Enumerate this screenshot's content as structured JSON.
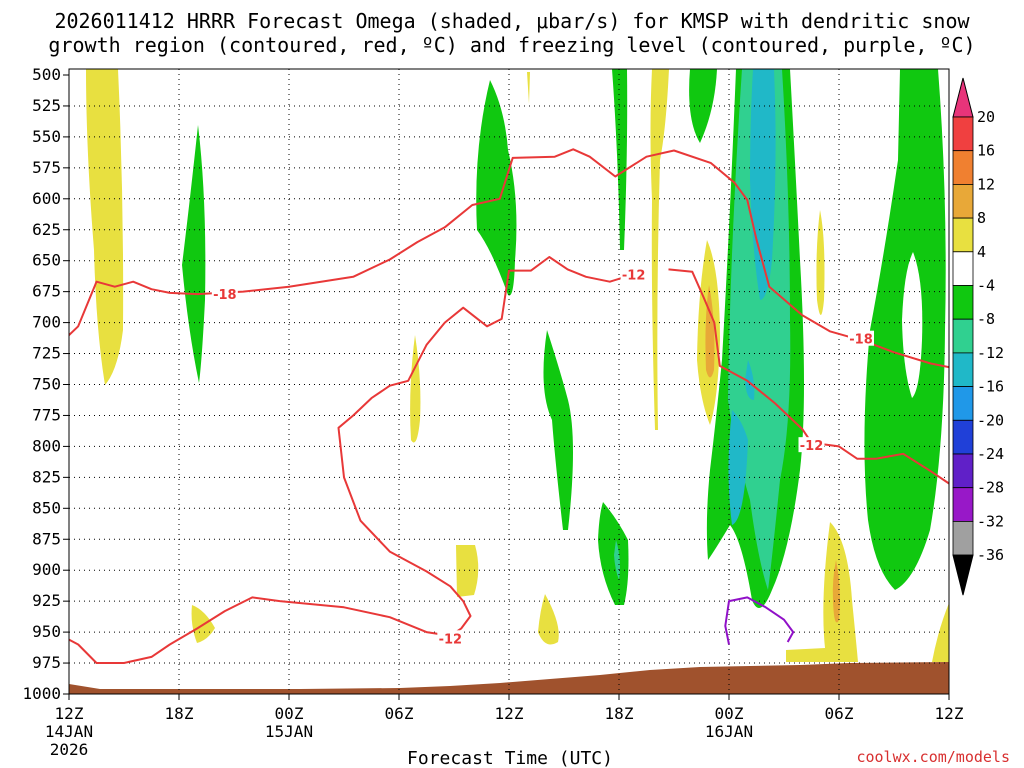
{
  "chart_data": {
    "type": "heatmap",
    "title_line1": "2026011412 HRRR Forecast Omega (shaded, μbar/s) for KMSP with dendritic snow",
    "title_line2": "growth region (contoured, red, ºC) and freezing level (contoured, purple, ºC)",
    "xlabel": "Forecast Time (UTC)",
    "credit": "coolwx.com/models",
    "x_range_hours": [
      0,
      48
    ],
    "x_ticks": [
      {
        "h": 0,
        "label": "12Z",
        "sub1": "14JAN",
        "sub2": "2026"
      },
      {
        "h": 6,
        "label": "18Z",
        "sub1": "",
        "sub2": ""
      },
      {
        "h": 12,
        "label": "00Z",
        "sub1": "15JAN",
        "sub2": ""
      },
      {
        "h": 18,
        "label": "06Z",
        "sub1": "",
        "sub2": ""
      },
      {
        "h": 24,
        "label": "12Z",
        "sub1": "",
        "sub2": ""
      },
      {
        "h": 30,
        "label": "18Z",
        "sub1": "",
        "sub2": ""
      },
      {
        "h": 36,
        "label": "00Z",
        "sub1": "16JAN",
        "sub2": ""
      },
      {
        "h": 42,
        "label": "06Z",
        "sub1": "",
        "sub2": ""
      },
      {
        "h": 48,
        "label": "12Z",
        "sub1": "",
        "sub2": ""
      }
    ],
    "y_range_hpa": [
      500,
      1000
    ],
    "y_ticks": [
      "500",
      "525",
      "550",
      "575",
      "600",
      "625",
      "650",
      "675",
      "700",
      "725",
      "750",
      "775",
      "800",
      "825",
      "850",
      "875",
      "900",
      "925",
      "950",
      "975",
      "1000"
    ],
    "colorbar": {
      "labels": [
        "20",
        "16",
        "12",
        "8",
        "4",
        "-4",
        "-8",
        "-12",
        "-16",
        "-20",
        "-24",
        "-28",
        "-32",
        "-36"
      ],
      "colors": [
        "#e8347a",
        "#f04040",
        "#f08030",
        "#e8a838",
        "#e8e040",
        "#ffffff",
        "#10c810",
        "#30d090",
        "#20b8c8",
        "#2098e8",
        "#2040d8",
        "#6020c8",
        "#9818c8",
        "#a0a0a0",
        "#000000"
      ]
    },
    "contour_labels": [
      {
        "text": "-18",
        "h": 8.5,
        "p": 677
      },
      {
        "text": "-12",
        "h": 30.8,
        "p": 661
      },
      {
        "text": "-18",
        "h": 43.2,
        "p": 713
      },
      {
        "text": "-12",
        "h": 40.5,
        "p": 799
      },
      {
        "text": "-12",
        "h": 20.8,
        "p": 955
      }
    ],
    "series": [
      {
        "name": "dendritic growth region -18 C (upper)",
        "points": [
          [
            -1.3,
            713
          ],
          [
            -0.2,
            713
          ],
          [
            0.5,
            703
          ],
          [
            1.5,
            667
          ],
          [
            2.5,
            671
          ],
          [
            3.5,
            667
          ],
          [
            4.5,
            673
          ],
          [
            5.5,
            676
          ],
          [
            7.0,
            677
          ],
          [
            9.5,
            675
          ],
          [
            12,
            671
          ],
          [
            15.5,
            663
          ],
          [
            17.5,
            649
          ],
          [
            19.0,
            635
          ],
          [
            20.5,
            623
          ],
          [
            22.0,
            605
          ],
          [
            23.5,
            600
          ],
          [
            24.2,
            567
          ],
          [
            26.5,
            566
          ],
          [
            27.5,
            560
          ],
          [
            28.4,
            566
          ],
          [
            29.8,
            582
          ],
          [
            31.5,
            566
          ],
          [
            33.0,
            561
          ],
          [
            35.0,
            571
          ],
          [
            36.3,
            587
          ],
          [
            37.0,
            601
          ],
          [
            37.5,
            633
          ],
          [
            38.2,
            671
          ],
          [
            40.0,
            694
          ],
          [
            41.5,
            707
          ],
          [
            43.4,
            715
          ],
          [
            45.0,
            724
          ],
          [
            47.0,
            733
          ],
          [
            48.0,
            736
          ]
        ]
      },
      {
        "name": "dendritic growth region -12 C (inner)",
        "points": [
          [
            30.8,
            661
          ],
          [
            29.5,
            667
          ],
          [
            28.2,
            663
          ],
          [
            27.2,
            657
          ],
          [
            26.2,
            647
          ],
          [
            25.2,
            658
          ],
          [
            24.0,
            658
          ],
          [
            23.6,
            697
          ],
          [
            22.8,
            703
          ],
          [
            21.5,
            688
          ],
          [
            20.5,
            700
          ],
          [
            19.5,
            718
          ],
          [
            18.5,
            747
          ],
          [
            17.5,
            751
          ],
          [
            16.5,
            761
          ],
          [
            15.5,
            775
          ],
          [
            14.7,
            785
          ],
          [
            15.0,
            825
          ],
          [
            15.9,
            860
          ],
          [
            17.5,
            885
          ],
          [
            19.5,
            901
          ],
          [
            20.8,
            913
          ],
          [
            21.5,
            925
          ],
          [
            21.9,
            937
          ],
          [
            21.4,
            947
          ],
          [
            20.8,
            953
          ],
          [
            19.5,
            950
          ],
          [
            17.5,
            938
          ],
          [
            15.0,
            930
          ],
          [
            11.5,
            925
          ],
          [
            10.0,
            922
          ],
          [
            8.5,
            933
          ],
          [
            7.0,
            947
          ],
          [
            5.5,
            960
          ],
          [
            4.5,
            970
          ],
          [
            3.0,
            975
          ],
          [
            1.5,
            975
          ],
          [
            0.5,
            960
          ],
          [
            -1.3,
            946
          ]
        ]
      },
      {
        "name": "dendritic growth region -12 C (right)",
        "points": [
          [
            32.7,
            657
          ],
          [
            34.0,
            659
          ],
          [
            34.6,
            679
          ],
          [
            35.2,
            700
          ],
          [
            35.5,
            735
          ],
          [
            37.0,
            747
          ],
          [
            38.5,
            765
          ],
          [
            40.0,
            786
          ],
          [
            40.5,
            797
          ],
          [
            42.0,
            800
          ],
          [
            43.0,
            810
          ],
          [
            44.0,
            810
          ],
          [
            45.5,
            806
          ],
          [
            47.0,
            820
          ],
          [
            48.0,
            830
          ]
        ]
      },
      {
        "name": "freezing level 0 C",
        "points": [
          [
            36.0,
            960
          ],
          [
            35.8,
            945
          ],
          [
            36.0,
            925
          ],
          [
            37.0,
            922
          ],
          [
            38.0,
            930
          ],
          [
            39.0,
            940
          ],
          [
            39.5,
            950
          ],
          [
            39.2,
            958
          ]
        ]
      }
    ]
  }
}
